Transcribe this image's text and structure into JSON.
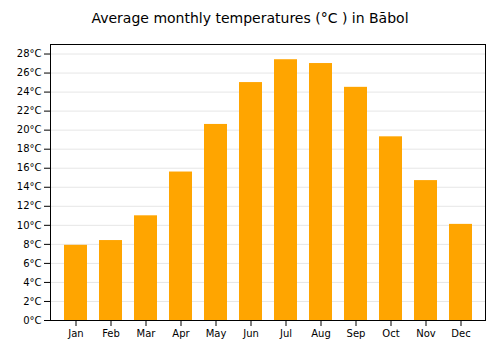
{
  "chart_data": {
    "type": "bar",
    "title": "Average monthly temperatures (°C ) in Bābol",
    "categories": [
      "Jan",
      "Feb",
      "Mar",
      "Apr",
      "May",
      "Jun",
      "Jul",
      "Aug",
      "Sep",
      "Oct",
      "Nov",
      "Dec"
    ],
    "values": [
      7.9,
      8.4,
      11.0,
      15.6,
      20.6,
      25.0,
      27.4,
      27.0,
      24.5,
      19.3,
      14.7,
      10.1
    ],
    "color": "#FFA500",
    "ylim": [
      0,
      29
    ],
    "yticks": [
      {
        "value": 0,
        "label": "0°C"
      },
      {
        "value": 2,
        "label": "2°C"
      },
      {
        "value": 4,
        "label": "4°C"
      },
      {
        "value": 6,
        "label": "6°C"
      },
      {
        "value": 8,
        "label": "8°C"
      },
      {
        "value": 10,
        "label": "10°C"
      },
      {
        "value": 12,
        "label": "12°C"
      },
      {
        "value": 14,
        "label": "14°C"
      },
      {
        "value": 16,
        "label": "16°C"
      },
      {
        "value": 18,
        "label": "18°C"
      },
      {
        "value": 20,
        "label": "20°C"
      },
      {
        "value": 22,
        "label": "22°C"
      },
      {
        "value": 24,
        "label": "24°C"
      },
      {
        "value": 26,
        "label": "26°C"
      },
      {
        "value": 28,
        "label": "28°C"
      }
    ],
    "grid": true
  }
}
